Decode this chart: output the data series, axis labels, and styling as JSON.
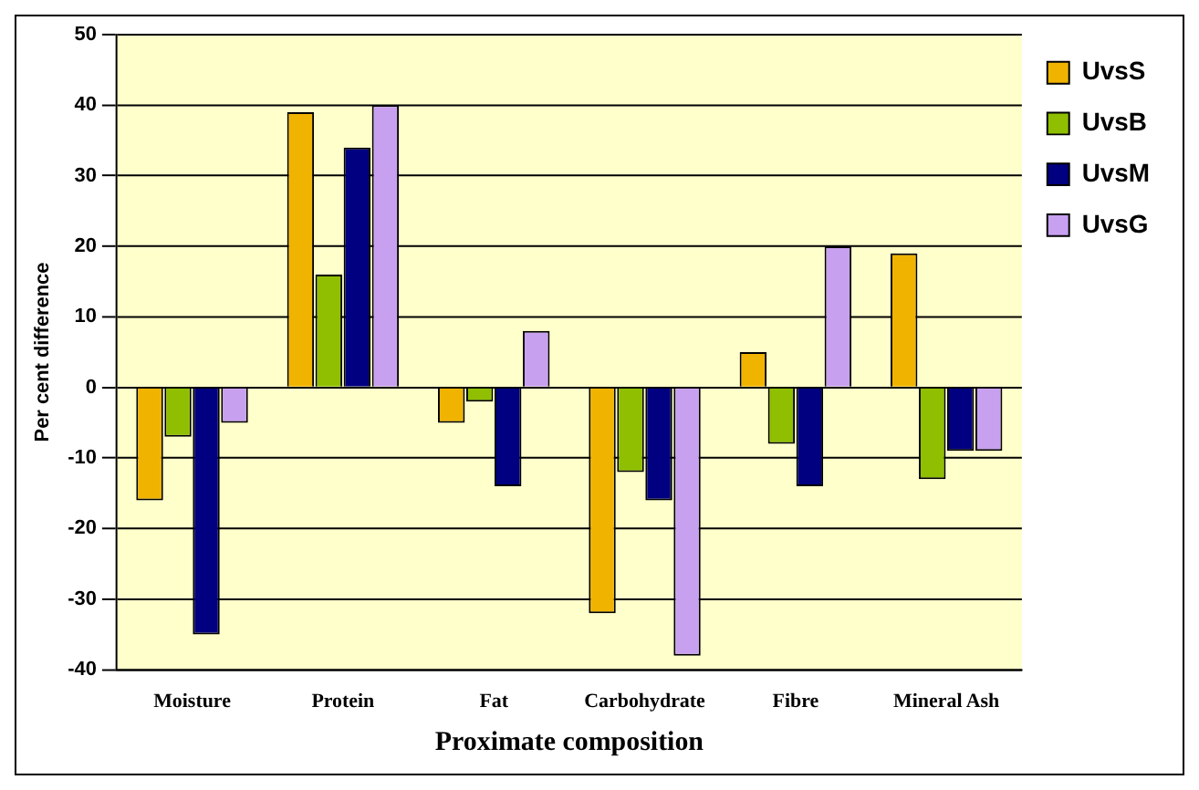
{
  "chart_data": {
    "type": "bar",
    "xlabel": "Proximate composition",
    "ylabel": "Per cent difference",
    "categories": [
      "Moisture",
      "Protein",
      "Fat",
      "Carbohydrate",
      "Fibre",
      "Mineral Ash"
    ],
    "series": [
      {
        "name": "UvsS",
        "color": "#f0b400",
        "values": [
          -16,
          39,
          -5,
          -32,
          5,
          19
        ]
      },
      {
        "name": "UvsB",
        "color": "#8fbf00",
        "values": [
          -7,
          16,
          -2,
          -12,
          -8,
          -13
        ]
      },
      {
        "name": "UvsM",
        "color": "#000080",
        "values": [
          -35,
          34,
          -14,
          -16,
          -14,
          -9
        ]
      },
      {
        "name": "UvsG",
        "color": "#c8a0f0",
        "values": [
          -5,
          40,
          8,
          -38,
          20,
          -9
        ]
      }
    ],
    "ylim": [
      -40,
      50
    ],
    "yticks": [
      -40,
      -30,
      -20,
      -10,
      0,
      10,
      20,
      30,
      40,
      50
    ],
    "grid": "y",
    "legend": "top right"
  }
}
